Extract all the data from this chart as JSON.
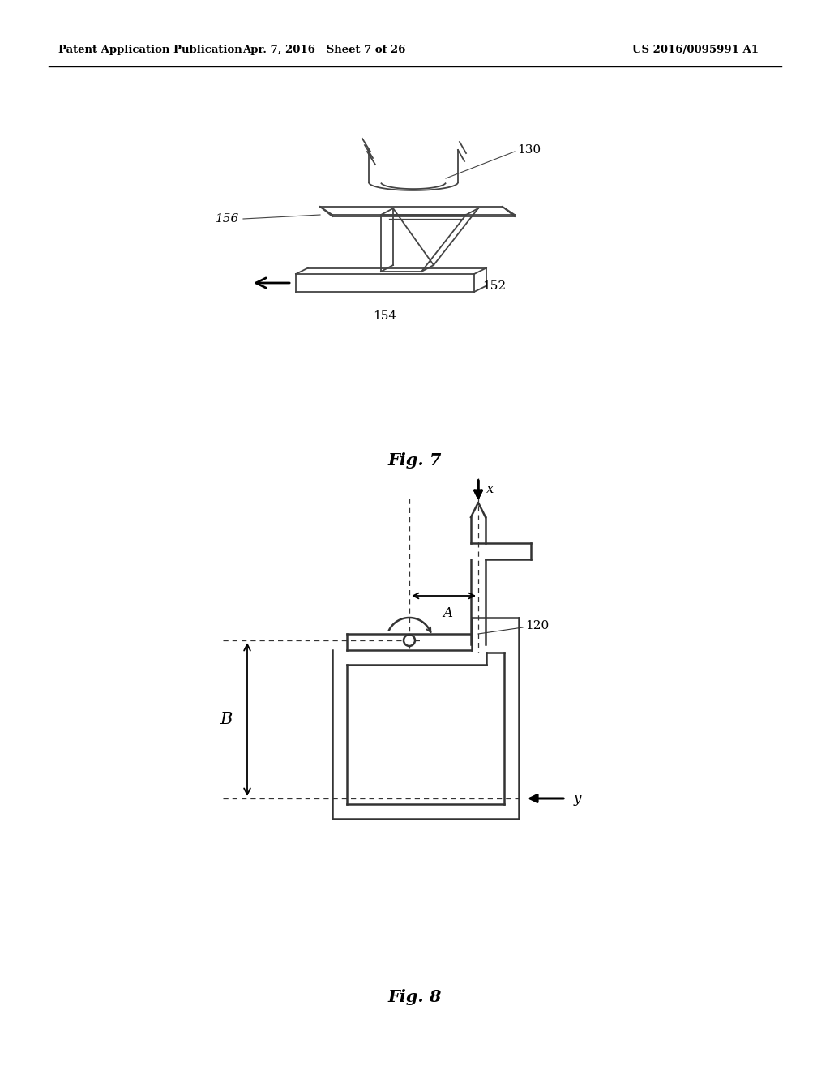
{
  "background_color": "#ffffff",
  "header_left": "Patent Application Publication",
  "header_center": "Apr. 7, 2016   Sheet 7 of 26",
  "header_right": "US 2016/0095991 A1",
  "fig7_caption": "Fig. 7",
  "fig8_caption": "Fig. 8",
  "label_130": "130",
  "label_152": "152",
  "label_154": "154",
  "label_156": "156",
  "label_120": "120",
  "label_A": "A",
  "label_B": "B",
  "label_x": "x",
  "label_y": "y"
}
